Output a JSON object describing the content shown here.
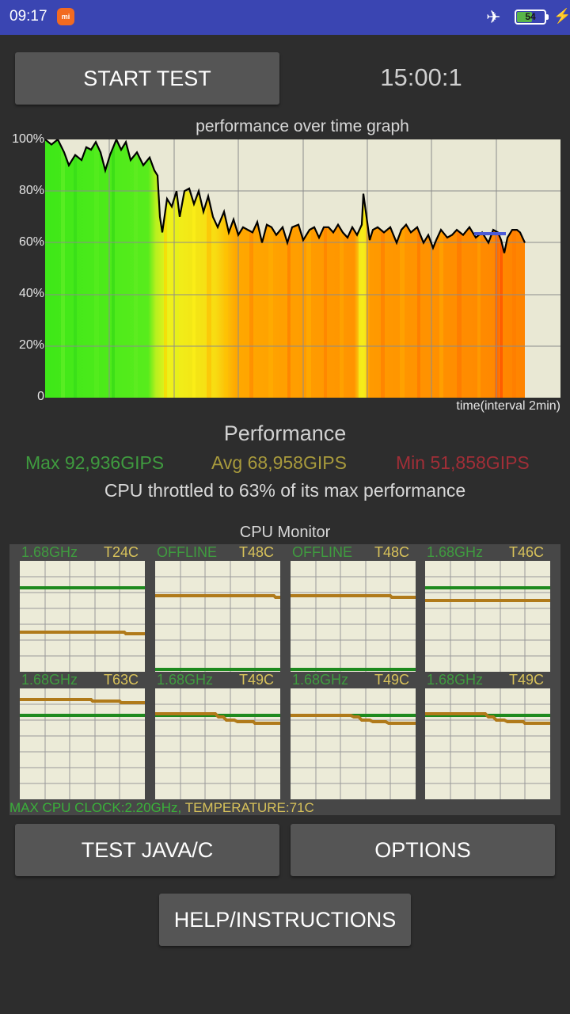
{
  "status_bar": {
    "time": "09:17",
    "app_icon": "mi-icon",
    "icons": [
      "airplane-icon",
      "battery-icon",
      "charging-bolt-icon"
    ],
    "battery_level": "54"
  },
  "controls": {
    "start_label": "START TEST",
    "timer": "15:00:1"
  },
  "graph": {
    "title": "performance over time graph",
    "y_ticks": [
      "100%",
      "80%",
      "60%",
      "40%",
      "20%",
      "0"
    ],
    "x_label": "time(interval 2min)",
    "colors": {
      "background": "#e9e8d4",
      "high": "#3ee818",
      "mid": "#f2f21a",
      "low": "#ff9a00",
      "lowest": "#ff5a00",
      "line": "#000000"
    }
  },
  "performance": {
    "title": "Performance",
    "max": "Max 92,936GIPS",
    "avg": "Avg 68,958GIPS",
    "min": "Min 51,858GIPS",
    "throttle_text": "CPU throttled to 63% of its max performance"
  },
  "cpu_monitor": {
    "title": "CPU Monitor",
    "cores": [
      {
        "freq": "1.68GHz",
        "temp": "T24C"
      },
      {
        "freq": "OFFLINE",
        "temp": "T48C"
      },
      {
        "freq": "OFFLINE",
        "temp": "T48C"
      },
      {
        "freq": "1.68GHz",
        "temp": "T46C"
      },
      {
        "freq": "1.68GHz",
        "temp": "T63C"
      },
      {
        "freq": "1.68GHz",
        "temp": "T49C"
      },
      {
        "freq": "1.68GHz",
        "temp": "T49C"
      },
      {
        "freq": "1.68GHz",
        "temp": "T49C"
      }
    ],
    "max_clock": "MAX CPU CLOCK:2.20GHz,",
    "temperature": "TEMPERATURE:71C"
  },
  "buttons": {
    "test_java": "TEST JAVA/C",
    "options": "OPTIONS",
    "help": "HELP/INSTRUCTIONS"
  }
}
